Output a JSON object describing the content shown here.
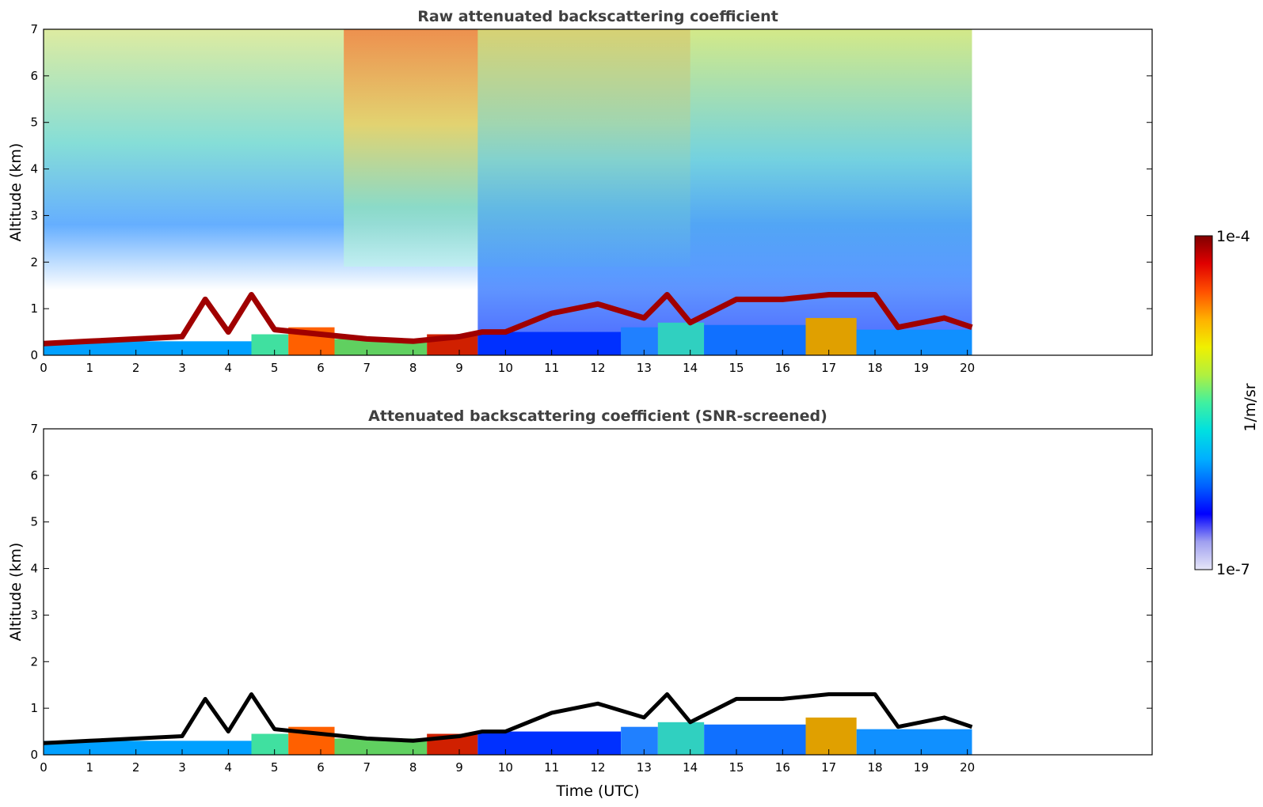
{
  "chart_data": [
    {
      "type": "heatmap",
      "title": "Raw attenuated backscattering coefficient",
      "xlabel": "",
      "ylabel": "Altitude (km)",
      "xlim": [
        0,
        24
      ],
      "ylim": [
        0,
        7
      ],
      "x_ticks": [
        "0",
        "1",
        "2",
        "3",
        "4",
        "5",
        "6",
        "7",
        "8",
        "9",
        "10",
        "11",
        "12",
        "13",
        "14",
        "15",
        "16",
        "17",
        "18",
        "19",
        "20"
      ],
      "y_ticks": [
        "0",
        "1",
        "2",
        "3",
        "4",
        "5",
        "6",
        "7"
      ],
      "data_time_range": [
        0,
        20.1
      ],
      "cloud_base_km": [
        {
          "x": 0,
          "y": 0.25
        },
        {
          "x": 1,
          "y": 0.3
        },
        {
          "x": 2,
          "y": 0.35
        },
        {
          "x": 3,
          "y": 0.4
        },
        {
          "x": 3.5,
          "y": 1.2
        },
        {
          "x": 4,
          "y": 0.5
        },
        {
          "x": 4.5,
          "y": 1.3
        },
        {
          "x": 5,
          "y": 0.55
        },
        {
          "x": 6,
          "y": 0.45
        },
        {
          "x": 7,
          "y": 0.35
        },
        {
          "x": 8,
          "y": 0.3
        },
        {
          "x": 9,
          "y": 0.4
        },
        {
          "x": 9.5,
          "y": 0.5
        },
        {
          "x": 10,
          "y": 0.5
        },
        {
          "x": 11,
          "y": 0.9
        },
        {
          "x": 12,
          "y": 1.1
        },
        {
          "x": 13,
          "y": 0.8
        },
        {
          "x": 13.5,
          "y": 1.3
        },
        {
          "x": 14,
          "y": 0.7
        },
        {
          "x": 15,
          "y": 1.2
        },
        {
          "x": 16,
          "y": 1.2
        },
        {
          "x": 17,
          "y": 1.3
        },
        {
          "x": 18,
          "y": 1.3
        },
        {
          "x": 18.5,
          "y": 0.6
        },
        {
          "x": 19.5,
          "y": 0.8
        },
        {
          "x": 20.1,
          "y": 0.6
        }
      ]
    },
    {
      "type": "heatmap",
      "title": "Attenuated backscattering coefficient (SNR-screened)",
      "xlabel": "Time (UTC)",
      "ylabel": "Altitude (km)",
      "xlim": [
        0,
        24
      ],
      "ylim": [
        0,
        7
      ],
      "x_ticks": [
        "0",
        "1",
        "2",
        "3",
        "4",
        "5",
        "6",
        "7",
        "8",
        "9",
        "10",
        "11",
        "12",
        "13",
        "14",
        "15",
        "16",
        "17",
        "18",
        "19",
        "20"
      ],
      "y_ticks": [
        "0",
        "1",
        "2",
        "3",
        "4",
        "5",
        "6",
        "7"
      ],
      "data_time_range": [
        0,
        20.1
      ],
      "cloud_base_km": [
        {
          "x": 0,
          "y": 0.25
        },
        {
          "x": 1,
          "y": 0.3
        },
        {
          "x": 2,
          "y": 0.35
        },
        {
          "x": 3,
          "y": 0.4
        },
        {
          "x": 3.5,
          "y": 1.2
        },
        {
          "x": 4,
          "y": 0.5
        },
        {
          "x": 4.5,
          "y": 1.3
        },
        {
          "x": 5,
          "y": 0.55
        },
        {
          "x": 6,
          "y": 0.45
        },
        {
          "x": 7,
          "y": 0.35
        },
        {
          "x": 8,
          "y": 0.3
        },
        {
          "x": 9,
          "y": 0.4
        },
        {
          "x": 9.5,
          "y": 0.5
        },
        {
          "x": 10,
          "y": 0.5
        },
        {
          "x": 11,
          "y": 0.9
        },
        {
          "x": 12,
          "y": 1.1
        },
        {
          "x": 13,
          "y": 0.8
        },
        {
          "x": 13.5,
          "y": 1.3
        },
        {
          "x": 14,
          "y": 0.7
        },
        {
          "x": 15,
          "y": 1.2
        },
        {
          "x": 16,
          "y": 1.2
        },
        {
          "x": 17,
          "y": 1.3
        },
        {
          "x": 18,
          "y": 1.3
        },
        {
          "x": 18.5,
          "y": 0.6
        },
        {
          "x": 19.5,
          "y": 0.8
        },
        {
          "x": 20.1,
          "y": 0.6
        }
      ]
    }
  ],
  "colorbar": {
    "max_label": "1e-4",
    "min_label": "1e-7",
    "unit_label": "1/m/sr",
    "colors": [
      "#e6e6f8",
      "#a0a0f0",
      "#0000ff",
      "#0060ff",
      "#00b0ff",
      "#00e0e0",
      "#40f0a0",
      "#b0f040",
      "#f0f000",
      "#ffb000",
      "#ff5000",
      "#e00000",
      "#800000"
    ]
  }
}
